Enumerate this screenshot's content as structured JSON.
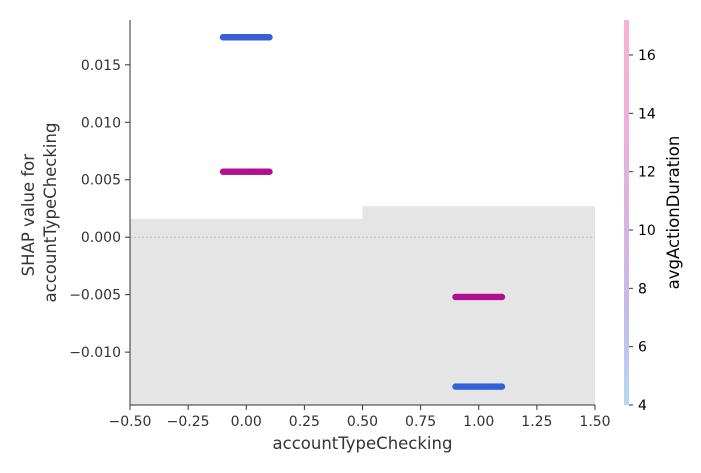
{
  "chart_data": {
    "type": "scatter",
    "title": "",
    "xlabel": "accountTypeChecking",
    "ylabel_lines": [
      "SHAP value for",
      "accountTypeChecking"
    ],
    "xlim": [
      -0.5,
      1.5
    ],
    "ylim": [
      -0.0146,
      0.0189
    ],
    "xticks": [
      -0.5,
      -0.25,
      0.0,
      0.25,
      0.5,
      0.75,
      1.0,
      1.25,
      1.5
    ],
    "xtick_labels": [
      "−0.50",
      "−0.25",
      "0.00",
      "0.25",
      "0.50",
      "0.75",
      "1.00",
      "1.25",
      "1.50"
    ],
    "yticks": [
      -0.01,
      -0.005,
      0.0,
      0.005,
      0.01,
      0.015
    ],
    "ytick_labels": [
      "−0.010",
      "−0.005",
      "0.000",
      "0.005",
      "0.010",
      "0.015"
    ],
    "zero_line": true,
    "grid": false,
    "histogram": {
      "color": "#e5e5e5",
      "bins": [
        {
          "x0": -0.5,
          "x1": 0.5,
          "top": 0.0016
        },
        {
          "x0": 0.5,
          "x1": 1.5,
          "top": 0.0027
        }
      ]
    },
    "clusters": [
      {
        "x_center": 0.0,
        "spread": 0.1,
        "y": 0.0174,
        "color_value": 5.2
      },
      {
        "x_center": 0.0,
        "spread": 0.1,
        "y": 0.0057,
        "color_value": 12.0
      },
      {
        "x_center": 1.0,
        "spread": 0.1,
        "y": -0.0052,
        "color_value": 12.0
      },
      {
        "x_center": 1.0,
        "spread": 0.1,
        "y": -0.013,
        "color_value": 5.0
      }
    ],
    "colorbar": {
      "label": "avgActionDuration",
      "range": [
        4,
        17.2
      ],
      "ticks": [
        4,
        6,
        8,
        10,
        12,
        14,
        16
      ],
      "tick_labels": [
        "4",
        "6",
        "8",
        "10",
        "12",
        "14",
        "16"
      ],
      "colors": [
        "#b3d9f2",
        "#c6b9e8",
        "#d9b3e0",
        "#f0b0d8",
        "#f7b3d3"
      ],
      "marker_colors": [
        {
          "value": 4,
          "color": "#1f6fe0"
        },
        {
          "value": 6,
          "color": "#4554d0"
        },
        {
          "value": 9,
          "color": "#7a3ab8"
        },
        {
          "value": 12,
          "color": "#b0108e"
        },
        {
          "value": 17.2,
          "color": "#c0207a"
        }
      ]
    }
  }
}
